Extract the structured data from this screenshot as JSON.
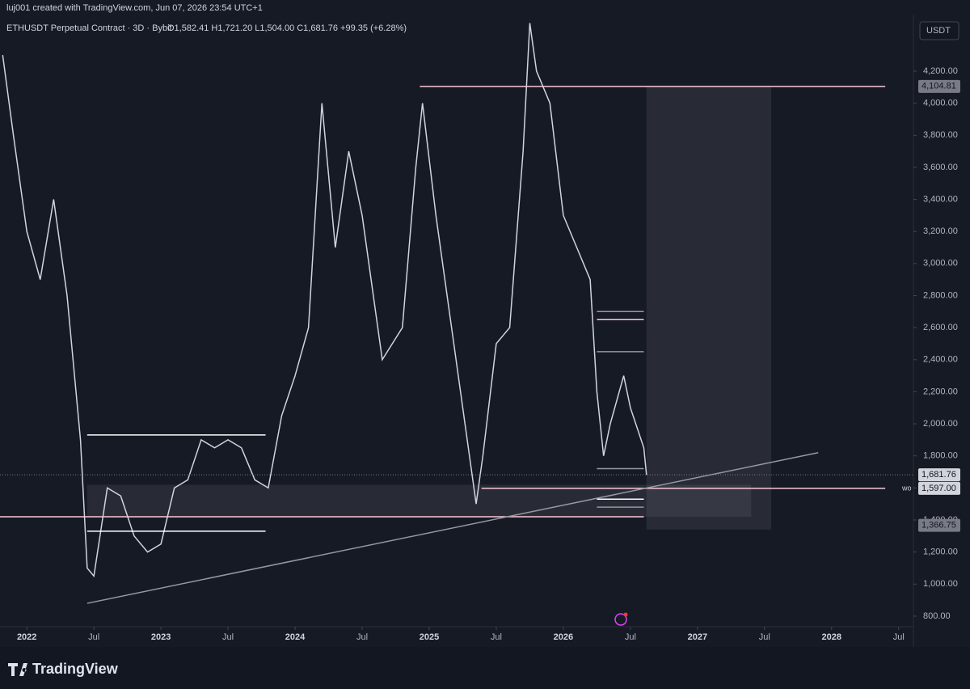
{
  "header": {
    "credit": "luj001 created with TradingView.com, Jun 07, 2026 23:54 UTC+1",
    "symbol": "ETHUSDT Perpetual Contract · 3D · Bybit",
    "ohlc": "O1,582.41 H1,721.20 L1,504.00 C1,681.76 +99.35 (+6.28%)",
    "currency": "USDT",
    "logo": "TradingView"
  },
  "chart_data": {
    "type": "line",
    "x": [
      2021.82,
      2021.9,
      2022.0,
      2022.1,
      2022.2,
      2022.3,
      2022.4,
      2022.45,
      2022.5,
      2022.6,
      2022.7,
      2022.8,
      2022.9,
      2023.0,
      2023.1,
      2023.2,
      2023.3,
      2023.4,
      2023.5,
      2023.6,
      2023.7,
      2023.8,
      2023.9,
      2024.0,
      2024.1,
      2024.2,
      2024.3,
      2024.4,
      2024.5,
      2024.6,
      2024.65,
      2024.8,
      2024.9,
      2024.95,
      2025.05,
      2025.15,
      2025.3,
      2025.35,
      2025.4,
      2025.5,
      2025.6,
      2025.7,
      2025.75,
      2025.8,
      2025.9,
      2026.0,
      2026.1,
      2026.2,
      2026.25,
      2026.3,
      2026.35,
      2026.45,
      2026.5,
      2026.6,
      2026.62
    ],
    "series": [
      {
        "name": "ETHUSDT",
        "color": "#d1d4dc",
        "values": [
          4300,
          3800,
          3200,
          2900,
          3400,
          2800,
          1900,
          1100,
          1050,
          1600,
          1550,
          1300,
          1200,
          1250,
          1600,
          1650,
          1900,
          1850,
          1900,
          1850,
          1650,
          1600,
          2050,
          2300,
          2600,
          4000,
          3100,
          3700,
          3300,
          2700,
          2400,
          2600,
          3600,
          4000,
          3300,
          2700,
          1800,
          1500,
          1800,
          2500,
          2600,
          3700,
          4500,
          4200,
          4000,
          3300,
          3100,
          2900,
          2200,
          1800,
          2000,
          2300,
          2100,
          1850,
          1681.76
        ]
      }
    ],
    "xlim": [
      2021.8,
      2028.61
    ],
    "xticks": [
      2022,
      {
        "value": 2022.5,
        "label": "Jul"
      },
      2023,
      {
        "value": 2023.5,
        "label": "Jul"
      },
      2024,
      {
        "value": 2024.5,
        "label": "Jul"
      },
      2025,
      {
        "value": 2025.5,
        "label": "Jul"
      },
      2026,
      {
        "value": 2026.5,
        "label": "Jul"
      },
      2027,
      {
        "value": 2027.5,
        "label": "Jul"
      },
      2028,
      {
        "value": 2028.5,
        "label": "Jul"
      }
    ],
    "ylim": [
      734,
      4553
    ],
    "yticks": [
      {
        "value": 800,
        "label": "800.00"
      },
      {
        "value": 1000,
        "label": "1,000.00"
      },
      {
        "value": 1200,
        "label": "1,200.00"
      },
      {
        "value": 1400,
        "label": "1,400.00"
      },
      {
        "value": 1600,
        "label": "1,600.00"
      },
      {
        "value": 1800,
        "label": "1,800.00"
      },
      {
        "value": 2000,
        "label": "2,000.00"
      },
      {
        "value": 2200,
        "label": "2,200.00"
      },
      {
        "value": 2400,
        "label": "2,400.00"
      },
      {
        "value": 2600,
        "label": "2,600.00"
      },
      {
        "value": 2800,
        "label": "2,800.00"
      },
      {
        "value": 3000,
        "label": "3,000.00"
      },
      {
        "value": 3200,
        "label": "3,200.00"
      },
      {
        "value": 3400,
        "label": "3,400.00"
      },
      {
        "value": 3600,
        "label": "3,600.00"
      },
      {
        "value": 3800,
        "label": "3,800.00"
      },
      {
        "value": 4000,
        "label": "4,000.00"
      },
      {
        "value": 4200,
        "label": "4,200.00"
      }
    ],
    "price_labels": [
      {
        "value": 4104.81,
        "label": "4,104.81",
        "color": "#787b86"
      },
      {
        "value": 1681.76,
        "label": "1,681.76",
        "color": "#d1d4dc"
      },
      {
        "value": 1597.0,
        "label": "1,597.00",
        "color": "#d1d4dc"
      },
      {
        "value": 1366.75,
        "label": "1,366.75",
        "color": "#787b86"
      }
    ],
    "level_note": "wo",
    "drawings": [
      {
        "x": [
          2024.93,
          2028.4
        ],
        "y": 4104.81,
        "color": "#f8c8d8"
      },
      {
        "x": [
          2025.39,
          2028.4
        ],
        "y": 1597.0,
        "color": "#f8c8d8"
      },
      {
        "x": [
          2021.8,
          2026.6
        ],
        "y": 1420,
        "color": "#f8c8d8"
      },
      {
        "x": [
          2022.45,
          2023.78
        ],
        "y": 1930,
        "color": "#ffffff"
      },
      {
        "x": [
          2022.45,
          2023.78
        ],
        "y": 1330,
        "color": "#ffffff"
      },
      {
        "x": [
          2026.25,
          2026.6
        ],
        "y": 2650,
        "color": "#f8c8d8"
      },
      {
        "x": [
          2026.25,
          2026.6
        ],
        "y": 2700,
        "color": "#9598a1"
      },
      {
        "x": [
          2026.25,
          2026.6
        ],
        "y": 2450,
        "color": "#9598a1"
      },
      {
        "x": [
          2026.25,
          2026.6
        ],
        "y": 1720,
        "color": "#9598a1"
      },
      {
        "x": [
          2026.25,
          2026.6
        ],
        "y": 1530,
        "color": "#ffffff"
      },
      {
        "x": [
          2026.25,
          2026.6
        ],
        "y": 1480,
        "color": "#9598a1"
      }
    ],
    "trendline": {
      "x": [
        2022.45,
        2027.9
      ],
      "y": [
        880,
        1820
      ]
    },
    "zones": [
      {
        "x": [
          2026.62,
          2027.55
        ],
        "y": [
          1340,
          4104.81
        ]
      },
      {
        "x": [
          2022.45,
          2027.4
        ],
        "y": [
          1420,
          1620
        ]
      }
    ]
  }
}
